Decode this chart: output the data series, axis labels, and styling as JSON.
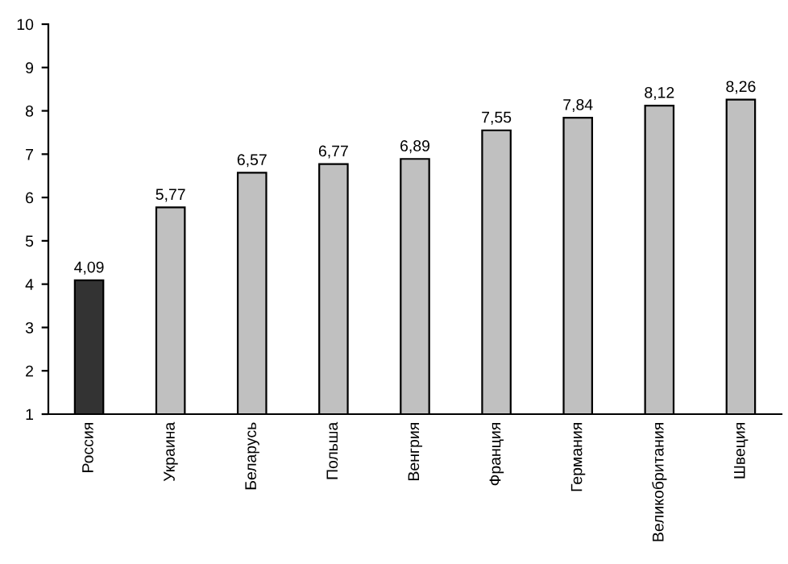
{
  "chart_data": {
    "type": "bar",
    "categories": [
      "Россия",
      "Украина",
      "Беларусь",
      "Польша",
      "Венгрия",
      "Франция",
      "Германия",
      "Великобритания",
      "Швеция"
    ],
    "values": [
      4.09,
      5.77,
      6.57,
      6.77,
      6.89,
      7.55,
      7.84,
      8.12,
      8.26
    ],
    "value_labels": [
      "4,09",
      "5,77",
      "6,57",
      "6,77",
      "6,89",
      "7,55",
      "7,84",
      "8,12",
      "8,26"
    ],
    "colors": [
      "#333333",
      "#c0c0c0",
      "#c0c0c0",
      "#c0c0c0",
      "#c0c0c0",
      "#c0c0c0",
      "#c0c0c0",
      "#c0c0c0",
      "#c0c0c0"
    ],
    "ylim": [
      1,
      10
    ],
    "yticks": [
      1,
      2,
      3,
      4,
      5,
      6,
      7,
      8,
      9,
      10
    ],
    "grid": false,
    "legend": false
  }
}
